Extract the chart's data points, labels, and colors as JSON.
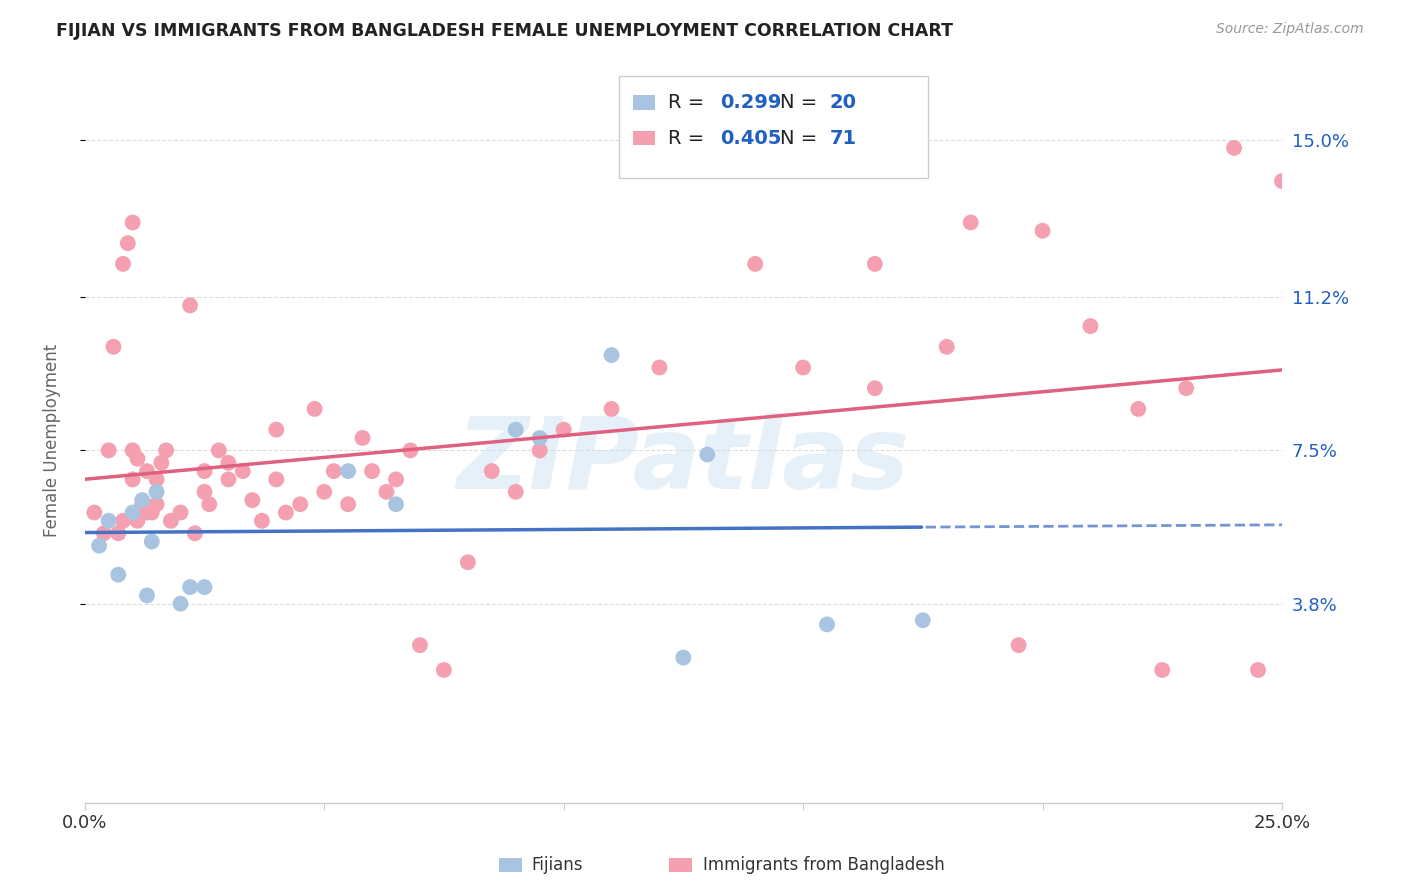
{
  "title": "FIJIAN VS IMMIGRANTS FROM BANGLADESH FEMALE UNEMPLOYMENT CORRELATION CHART",
  "source": "Source: ZipAtlas.com",
  "ylabel": "Female Unemployment",
  "xlim": [
    0.0,
    0.25
  ],
  "ylim": [
    -0.01,
    0.165
  ],
  "yticks": [
    0.038,
    0.075,
    0.112,
    0.15
  ],
  "ytick_labels": [
    "3.8%",
    "7.5%",
    "11.2%",
    "15.0%"
  ],
  "fijian_color": "#a8c4e0",
  "fijian_line_color": "#4472c4",
  "bangladesh_color": "#f4a0b0",
  "bangladesh_line_color": "#e06080",
  "fijian_R": 0.299,
  "fijian_N": 20,
  "bangladesh_R": 0.405,
  "bangladesh_N": 71,
  "fijian_x": [
    0.003,
    0.005,
    0.007,
    0.01,
    0.012,
    0.013,
    0.014,
    0.015,
    0.02,
    0.022,
    0.025,
    0.055,
    0.065,
    0.09,
    0.095,
    0.11,
    0.125,
    0.13,
    0.155,
    0.175
  ],
  "fijian_y": [
    0.052,
    0.058,
    0.045,
    0.06,
    0.063,
    0.04,
    0.053,
    0.065,
    0.038,
    0.042,
    0.042,
    0.07,
    0.062,
    0.08,
    0.078,
    0.098,
    0.025,
    0.074,
    0.033,
    0.034
  ],
  "bangladesh_x": [
    0.002,
    0.004,
    0.005,
    0.006,
    0.007,
    0.008,
    0.008,
    0.009,
    0.01,
    0.01,
    0.01,
    0.011,
    0.011,
    0.012,
    0.013,
    0.013,
    0.014,
    0.015,
    0.015,
    0.016,
    0.017,
    0.018,
    0.02,
    0.022,
    0.023,
    0.025,
    0.025,
    0.026,
    0.028,
    0.03,
    0.03,
    0.033,
    0.035,
    0.037,
    0.04,
    0.04,
    0.042,
    0.045,
    0.048,
    0.05,
    0.052,
    0.055,
    0.058,
    0.06,
    0.063,
    0.065,
    0.068,
    0.07,
    0.075,
    0.08,
    0.085,
    0.09,
    0.095,
    0.1,
    0.11,
    0.12,
    0.14,
    0.15,
    0.165,
    0.18,
    0.185,
    0.195,
    0.2,
    0.21,
    0.22,
    0.225,
    0.23,
    0.24,
    0.245,
    0.25,
    0.165
  ],
  "bangladesh_y": [
    0.06,
    0.055,
    0.075,
    0.1,
    0.055,
    0.12,
    0.058,
    0.125,
    0.068,
    0.075,
    0.13,
    0.058,
    0.073,
    0.062,
    0.06,
    0.07,
    0.06,
    0.062,
    0.068,
    0.072,
    0.075,
    0.058,
    0.06,
    0.11,
    0.055,
    0.065,
    0.07,
    0.062,
    0.075,
    0.068,
    0.072,
    0.07,
    0.063,
    0.058,
    0.08,
    0.068,
    0.06,
    0.062,
    0.085,
    0.065,
    0.07,
    0.062,
    0.078,
    0.07,
    0.065,
    0.068,
    0.075,
    0.028,
    0.022,
    0.048,
    0.07,
    0.065,
    0.075,
    0.08,
    0.085,
    0.095,
    0.12,
    0.095,
    0.09,
    0.1,
    0.13,
    0.028,
    0.128,
    0.105,
    0.085,
    0.022,
    0.09,
    0.148,
    0.022,
    0.14,
    0.12
  ],
  "watermark": "ZIPatlas",
  "watermark_color": "#c8dff0",
  "legend_R_color": "#2060c0",
  "legend_label_color": "#333333",
  "bottom_legend_labels": [
    "Fijians",
    "Immigrants from Bangladesh"
  ],
  "grid_color": "#dddddd",
  "axis_label_color": "#666666",
  "title_color": "#222222",
  "source_color": "#999999"
}
